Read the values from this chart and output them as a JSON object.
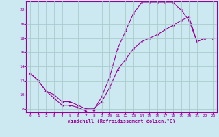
{
  "xlabel": "Windchill (Refroidissement éolien,°C)",
  "bg_color": "#cce8f0",
  "line_color": "#990099",
  "grid_color": "#aacccc",
  "xlim": [
    -0.5,
    23.5
  ],
  "ylim": [
    7.5,
    23.2
  ],
  "xticks": [
    0,
    1,
    2,
    3,
    4,
    5,
    6,
    7,
    8,
    9,
    10,
    11,
    12,
    13,
    14,
    15,
    16,
    17,
    18,
    19,
    20,
    21,
    22,
    23
  ],
  "yticks": [
    8,
    10,
    12,
    14,
    16,
    18,
    20,
    22
  ],
  "line1_x": [
    0,
    1,
    2,
    3,
    4,
    5,
    6,
    7,
    7,
    8,
    9,
    10,
    11,
    12,
    13,
    14,
    15,
    16,
    17,
    18,
    19,
    20,
    21,
    22,
    23
  ],
  "line1_y": [
    13,
    12,
    10.5,
    9.5,
    8.5,
    8.5,
    8.2,
    7.7,
    8.0,
    7.8,
    9.7,
    12.5,
    16.5,
    19.0,
    21.5,
    23.0,
    23.0,
    23.0,
    23.0,
    23.0,
    22.0,
    20.5,
    17.5,
    18.0,
    18.0
  ],
  "line2_x": [
    0,
    1,
    2,
    3,
    4,
    5,
    6,
    7,
    8,
    9,
    10,
    11,
    12,
    13,
    14,
    15,
    16,
    17,
    18,
    19,
    20,
    21,
    22,
    23
  ],
  "line2_y": [
    13,
    12,
    10.5,
    10,
    9,
    9,
    8.5,
    8.0,
    8.0,
    9.0,
    11.0,
    13.5,
    15.0,
    16.5,
    17.5,
    18.0,
    18.5,
    19.2,
    19.8,
    20.5,
    21.0,
    17.5,
    18.0,
    18.0
  ]
}
